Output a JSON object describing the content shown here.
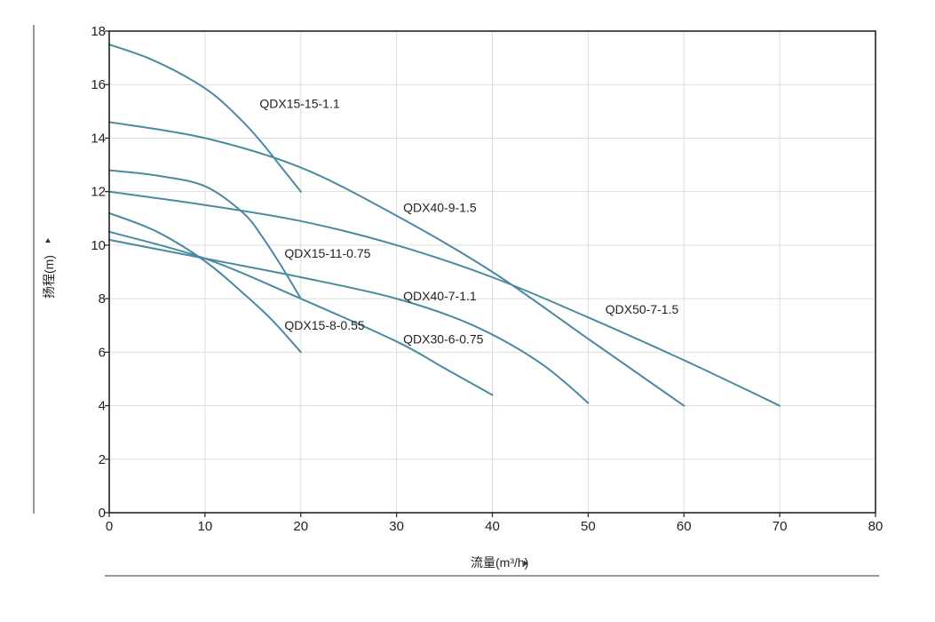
{
  "chart_data": {
    "type": "line",
    "xlabel": "流量(m³/h)",
    "ylabel": "扬程(m)",
    "xlim": [
      0,
      80
    ],
    "ylim": [
      0,
      18
    ],
    "xticks": [
      "0",
      "10",
      "20",
      "30",
      "40",
      "50",
      "60",
      "70",
      "80"
    ],
    "yticks": [
      "0",
      "2",
      "4",
      "6",
      "8",
      "10",
      "12",
      "14",
      "16",
      "18"
    ],
    "grid": true,
    "line_color": "#4a8aa0",
    "grid_color": "#dddddd",
    "series": [
      {
        "name": "QDX15-15-1.1",
        "x": [
          0,
          4,
          8,
          11,
          14,
          16,
          18,
          20
        ],
        "y": [
          17.5,
          17.0,
          16.3,
          15.6,
          14.6,
          13.8,
          12.9,
          12.0
        ]
      },
      {
        "name": "QDX40-9-1.5",
        "x": [
          0,
          10,
          20,
          30,
          40,
          50,
          60
        ],
        "y": [
          14.6,
          14.0,
          12.9,
          11.1,
          9.0,
          6.5,
          4.0
        ]
      },
      {
        "name": "QDX15-11-0.75",
        "x": [
          0,
          5,
          10,
          14,
          16,
          18,
          20
        ],
        "y": [
          12.8,
          12.6,
          12.2,
          11.2,
          10.3,
          9.2,
          8.0
        ]
      },
      {
        "name": "QDX50-7-1.5",
        "x": [
          0,
          10,
          20,
          30,
          40,
          50,
          60,
          70
        ],
        "y": [
          12.0,
          11.5,
          10.9,
          10.0,
          8.8,
          7.3,
          5.7,
          4.0
        ]
      },
      {
        "name": "QDX15-8-0.55",
        "x": [
          0,
          5,
          10,
          14,
          17,
          20
        ],
        "y": [
          11.2,
          10.5,
          9.4,
          8.2,
          7.2,
          6.0
        ]
      },
      {
        "name": "QDX30-6-0.75",
        "x": [
          0,
          10,
          20,
          30,
          35,
          40
        ],
        "y": [
          10.5,
          9.5,
          8.0,
          6.4,
          5.4,
          4.4
        ]
      },
      {
        "name": "QDX40-7-1.1",
        "x": [
          0,
          10,
          20,
          30,
          38,
          45,
          50
        ],
        "y": [
          10.2,
          9.5,
          8.8,
          8.0,
          7.0,
          5.6,
          4.1
        ]
      }
    ],
    "annotations": [
      {
        "text": "QDX15-15-1.1",
        "x": 15.7,
        "y": 15.3
      },
      {
        "text": "QDX40-9-1.5",
        "x": 30.7,
        "y": 11.4
      },
      {
        "text": "QDX15-11-0.75",
        "x": 18.3,
        "y": 9.7
      },
      {
        "text": "QDX40-7-1.1",
        "x": 30.7,
        "y": 8.1
      },
      {
        "text": "QDX50-7-1.5",
        "x": 51.8,
        "y": 7.6
      },
      {
        "text": "QDX15-8-0.55",
        "x": 18.3,
        "y": 7.0
      },
      {
        "text": "QDX30-6-0.75",
        "x": 30.7,
        "y": 6.5
      }
    ]
  }
}
